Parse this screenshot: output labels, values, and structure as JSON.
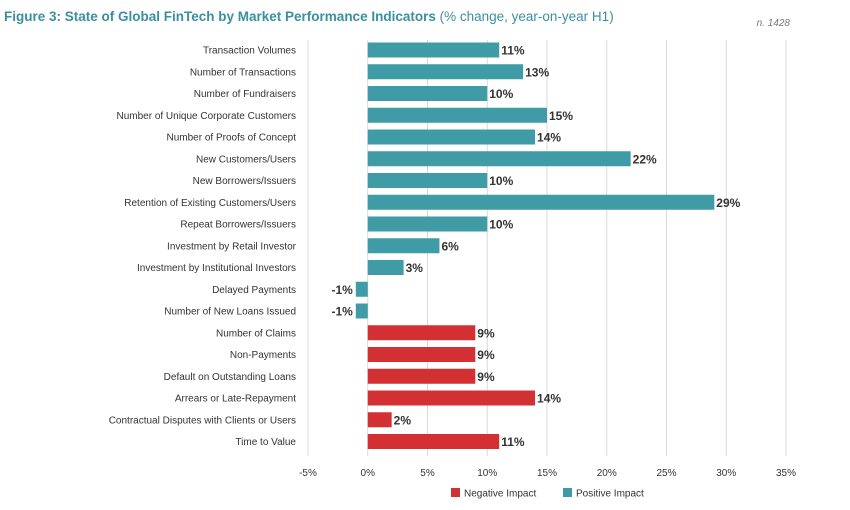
{
  "header": {
    "title_main": "Figure 3: State of Global FinTech by Market Performance Indicators",
    "title_sub": "(% change, year-on-year H1)",
    "sample_note": "n. 1428"
  },
  "colors": {
    "positive": "#3f9ba6",
    "negative": "#d33034",
    "title": "#3a8fa0",
    "grid": "#d9d9d9",
    "text": "#333333"
  },
  "chart_data": {
    "type": "bar",
    "orientation": "horizontal",
    "categories": [
      "Transaction Volumes",
      "Number of Transactions",
      "Number of Fundraisers",
      "Number of Unique Corporate Customers",
      "Number of Proofs of Concept",
      "New Customers/Users",
      "New Borrowers/Issuers",
      "Retention of Existing Customers/Users",
      "Repeat Borrowers/Issuers",
      "Investment by Retail Investor",
      "Investment by Institutional Investors",
      "Delayed Payments",
      "Number of New Loans Issued",
      "Number of Claims",
      "Non-Payments",
      "Default on Outstanding Loans",
      "Arrears or Late-Repayment",
      "Contractual Disputes with Clients or Users",
      "Time to Value"
    ],
    "values": [
      11,
      13,
      10,
      15,
      14,
      22,
      10,
      29,
      10,
      6,
      3,
      -1,
      -1,
      9,
      9,
      9,
      14,
      2,
      11
    ],
    "data_labels": [
      "11%",
      "13%",
      "10%",
      "15%",
      "14%",
      "22%",
      "10%",
      "29%",
      "10%",
      "6%",
      "3%",
      "-1%",
      "-1%",
      "9%",
      "9%",
      "9%",
      "14%",
      "2%",
      "11%"
    ],
    "impact": [
      "positive",
      "positive",
      "positive",
      "positive",
      "positive",
      "positive",
      "positive",
      "positive",
      "positive",
      "positive",
      "positive",
      "positive",
      "positive",
      "negative",
      "negative",
      "negative",
      "negative",
      "negative",
      "negative"
    ],
    "xlim": [
      -5,
      35
    ],
    "xticks": [
      -5,
      0,
      5,
      10,
      15,
      20,
      25,
      30,
      35
    ],
    "xtick_labels": [
      "-5%",
      "0%",
      "5%",
      "10%",
      "15%",
      "20%",
      "25%",
      "30%",
      "35%"
    ],
    "grid": true,
    "legend_position": "bottom",
    "legend": [
      {
        "key": "negative",
        "label": "Negative Impact"
      },
      {
        "key": "positive",
        "label": "Positive Impact"
      }
    ]
  }
}
